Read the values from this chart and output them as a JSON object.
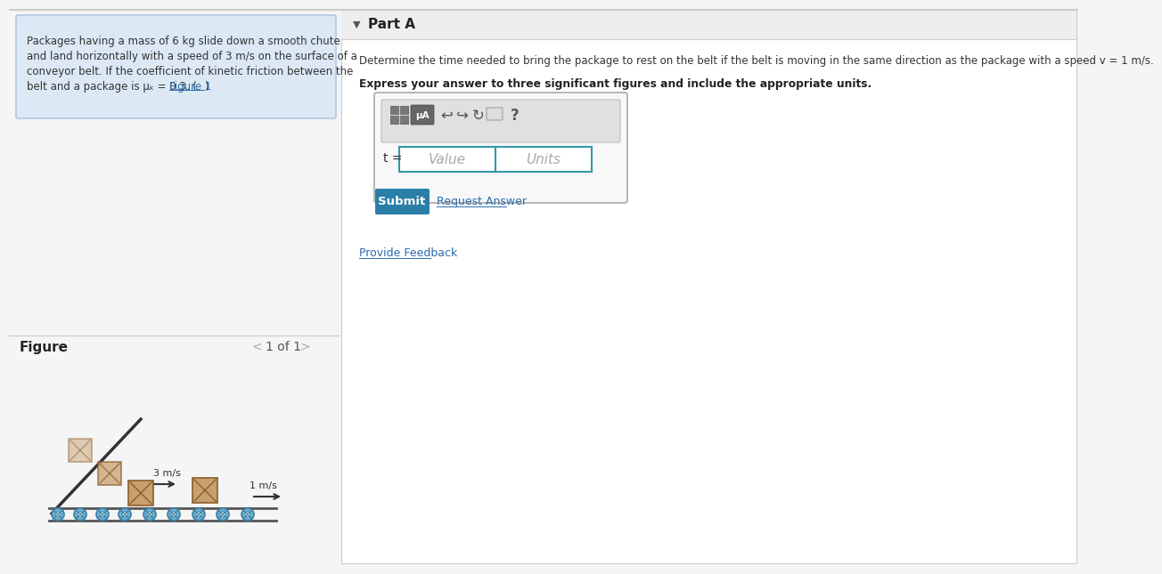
{
  "bg_color": "#f5f5f5",
  "left_panel_bg": "#dce9f5",
  "left_panel_border": "#b0c8e0",
  "figure_label": "Figure",
  "figure_nav": "1 of 1",
  "part_a_label": "Part A",
  "question_text": "Determine the time needed to bring the package to rest on the belt if the belt is moving in the same direction as the package with a speed v = 1 m/s.",
  "bold_instruction": "Express your answer to three significant figures and include the appropriate units.",
  "t_label": "t =",
  "value_placeholder": "Value",
  "units_placeholder": "Units",
  "submit_text": "Submit",
  "submit_bg": "#2a7fa8",
  "request_answer_text": "Request Answer",
  "provide_feedback_text": "Provide Feedback",
  "link_color": "#2a6baa",
  "speed1_label": "3 m/s",
  "speed2_label": "1 m/s",
  "input_border_color": "#3399aa",
  "left_text_lines": [
    "Packages having a mass of 6 kg slide down a smooth chute",
    "and land horizontally with a speed of 3 m/s on the surface of a",
    "conveyor belt. If the coefficient of kinetic friction between the",
    "belt and a package is μₖ = 0.3. ("
  ],
  "figure1_link": "Figure 1",
  "left_text_last_suffix": ")"
}
